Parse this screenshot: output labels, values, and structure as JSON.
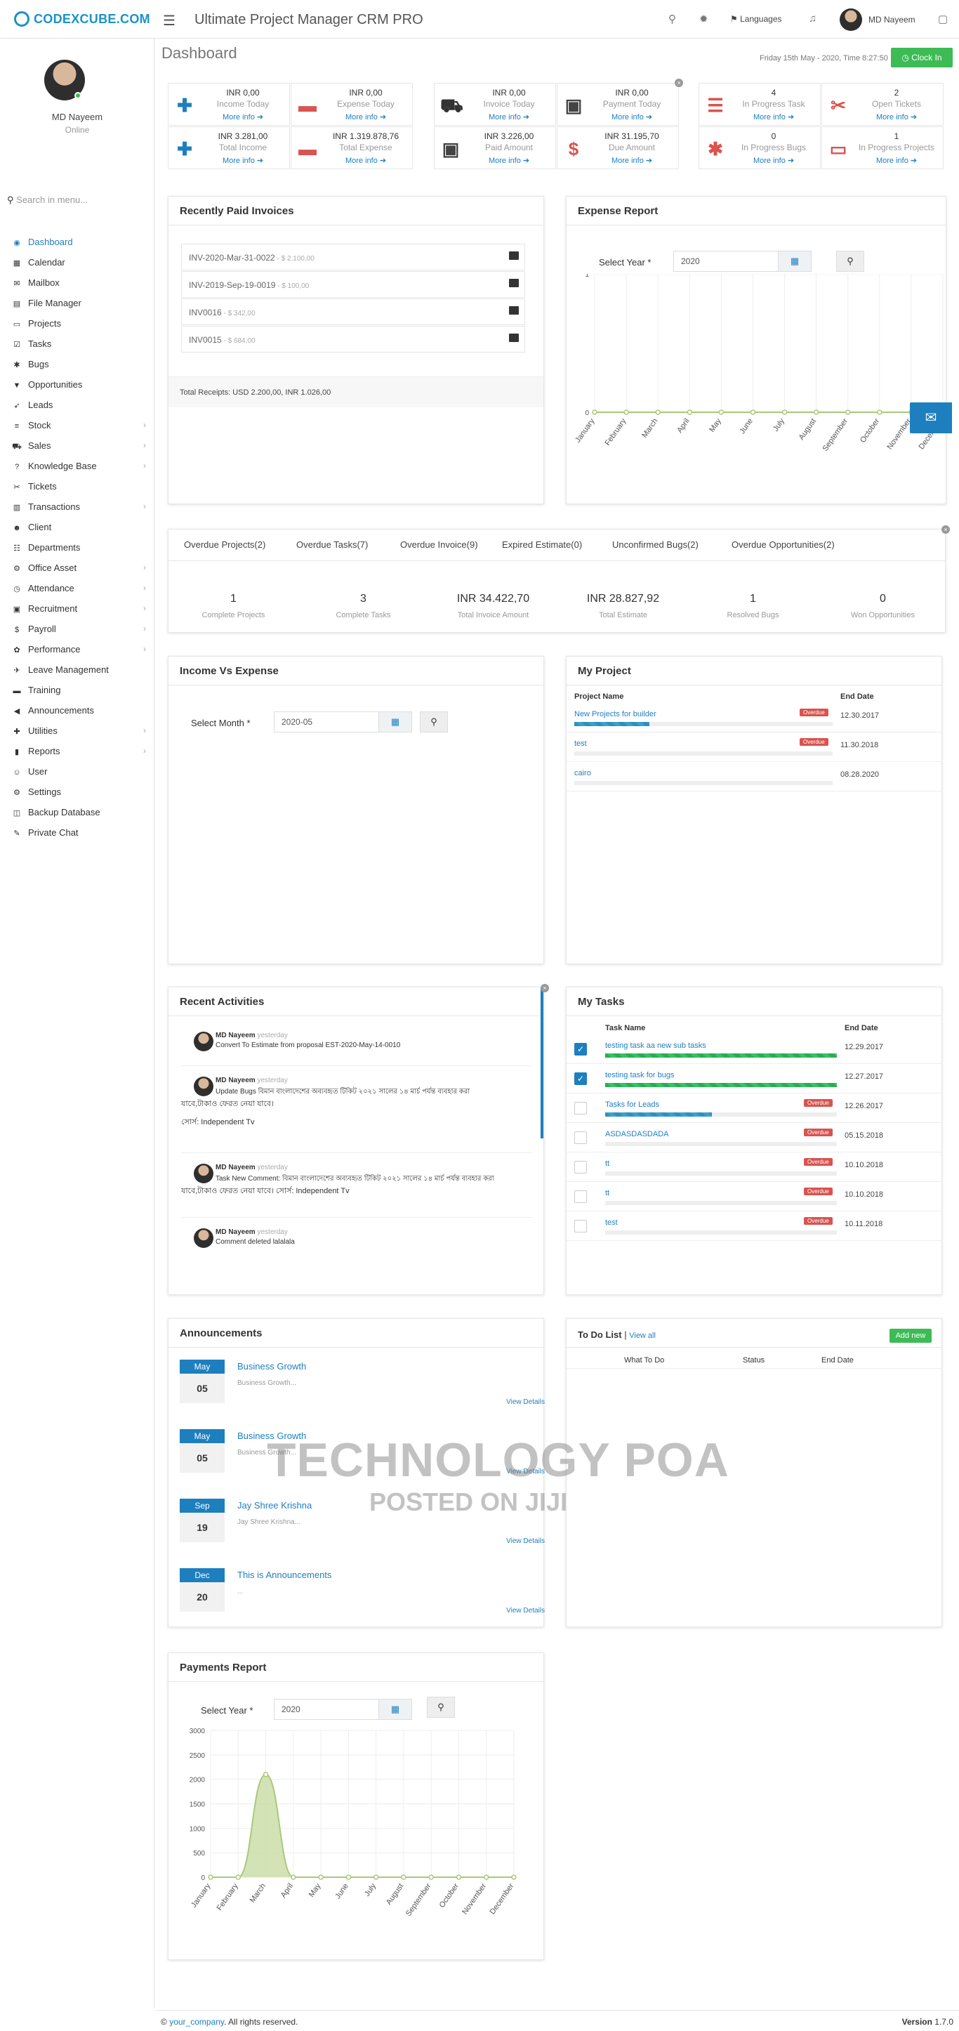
{
  "header": {
    "logo": "CODEXCUBE.COM",
    "app_title": "Ultimate Project Manager CRM PRO",
    "languages_label": "Languages",
    "user_name": "MD Nayeem"
  },
  "sidebar": {
    "user_name": "MD Nayeem",
    "status": "Online",
    "search_placeholder": "Search in menu...",
    "items": [
      {
        "label": "Dashboard",
        "icon": "dashboard-icon",
        "glyph": "◉",
        "arrow": false
      },
      {
        "label": "Calendar",
        "icon": "calendar-icon",
        "glyph": "▦",
        "arrow": false
      },
      {
        "label": "Mailbox",
        "icon": "envelope-icon",
        "glyph": "✉",
        "arrow": false
      },
      {
        "label": "File Manager",
        "icon": "file-icon",
        "glyph": "▤",
        "arrow": false
      },
      {
        "label": "Projects",
        "icon": "folder-icon",
        "glyph": "▭",
        "arrow": false
      },
      {
        "label": "Tasks",
        "icon": "tasks-icon",
        "glyph": "☑",
        "arrow": false
      },
      {
        "label": "Bugs",
        "icon": "bug-icon",
        "glyph": "✱",
        "arrow": false
      },
      {
        "label": "Opportunities",
        "icon": "filter-icon",
        "glyph": "▼",
        "arrow": false
      },
      {
        "label": "Leads",
        "icon": "rocket-icon",
        "glyph": "➶",
        "arrow": false
      },
      {
        "label": "Stock",
        "icon": "database-icon",
        "glyph": "≡",
        "arrow": true
      },
      {
        "label": "Sales",
        "icon": "cart-icon",
        "glyph": "⛟",
        "arrow": true
      },
      {
        "label": "Knowledge Base",
        "icon": "question-icon",
        "glyph": "?",
        "arrow": true
      },
      {
        "label": "Tickets",
        "icon": "ticket-icon",
        "glyph": "✂",
        "arrow": false
      },
      {
        "label": "Transactions",
        "icon": "transactions-icon",
        "glyph": "▥",
        "arrow": true
      },
      {
        "label": "Client",
        "icon": "users-icon",
        "glyph": "☻",
        "arrow": false
      },
      {
        "label": "Departments",
        "icon": "sitemap-icon",
        "glyph": "☷",
        "arrow": false
      },
      {
        "label": "Office Asset",
        "icon": "briefcase-icon",
        "glyph": "⚙",
        "arrow": true
      },
      {
        "label": "Attendance",
        "icon": "clock-icon",
        "glyph": "◷",
        "arrow": true
      },
      {
        "label": "Recruitment",
        "icon": "recruitment-icon",
        "glyph": "▣",
        "arrow": true
      },
      {
        "label": "Payroll",
        "icon": "dollar-icon",
        "glyph": "$",
        "arrow": true
      },
      {
        "label": "Performance",
        "icon": "performance-icon",
        "glyph": "✿",
        "arrow": true
      },
      {
        "label": "Leave Management",
        "icon": "plane-icon",
        "glyph": "✈",
        "arrow": false
      },
      {
        "label": "Training",
        "icon": "training-icon",
        "glyph": "▬",
        "arrow": false
      },
      {
        "label": "Announcements",
        "icon": "bullhorn-icon",
        "glyph": "◀",
        "arrow": false
      },
      {
        "label": "Utilities",
        "icon": "gift-icon",
        "glyph": "✚",
        "arrow": true
      },
      {
        "label": "Reports",
        "icon": "bar-chart-icon",
        "glyph": "▮",
        "arrow": true
      },
      {
        "label": "User",
        "icon": "user-icon",
        "glyph": "☺",
        "arrow": false
      },
      {
        "label": "Settings",
        "icon": "cogs-icon",
        "glyph": "⚙",
        "arrow": false
      },
      {
        "label": "Backup Database",
        "icon": "backup-icon",
        "glyph": "◫",
        "arrow": false
      },
      {
        "label": "Private Chat",
        "icon": "chat-icon",
        "glyph": "✎",
        "arrow": false
      }
    ]
  },
  "page": {
    "title": "Dashboard",
    "datetime": "Friday 15th May - 2020,  Time   8:27:50",
    "clock_in": "Clock In"
  },
  "stats": [
    {
      "value": "INR 0,00",
      "label": "Income Today",
      "more": "More info",
      "glyph": "✚",
      "icon": "plus-icon",
      "color": "#1e7fbf"
    },
    {
      "value": "INR 0,00",
      "label": "Expense Today",
      "more": "More info",
      "glyph": "▬",
      "icon": "minus-icon",
      "color": "#d9534f"
    },
    {
      "value": "INR 3.281,00",
      "label": "Total Income",
      "more": "More info",
      "glyph": "✚",
      "icon": "plus-icon",
      "color": "#1e7fbf"
    },
    {
      "value": "INR 1.319.878,76",
      "label": "Total Expense",
      "more": "More info",
      "glyph": "▬",
      "icon": "minus-icon",
      "color": "#d9534f"
    },
    {
      "value": "INR 0,00",
      "label": "Invoice Today",
      "more": "More info",
      "glyph": "⛟",
      "icon": "cart-icon",
      "color": "#333"
    },
    {
      "value": "INR 0,00",
      "label": "Payment Today",
      "more": "More info",
      "glyph": "▣",
      "icon": "money-icon",
      "color": "#444"
    },
    {
      "value": "INR 3.226,00",
      "label": "Paid Amount",
      "more": "More info",
      "glyph": "▣",
      "icon": "money-icon",
      "color": "#444"
    },
    {
      "value": "INR 31.195,70",
      "label": "Due Amount",
      "more": "More info",
      "glyph": "$",
      "icon": "dollar-icon",
      "color": "#d9534f"
    },
    {
      "value": "4",
      "label": "In Progress Task",
      "more": "More info",
      "glyph": "☰",
      "icon": "tasks-icon",
      "color": "#d9534f"
    },
    {
      "value": "2",
      "label": "Open Tickets",
      "more": "More info",
      "glyph": "✂",
      "icon": "ticket-icon",
      "color": "#d9534f"
    },
    {
      "value": "0",
      "label": "In Progress Bugs",
      "more": "More info",
      "glyph": "✱",
      "icon": "bug-icon",
      "color": "#d9534f"
    },
    {
      "value": "1",
      "label": "In Progress Projects",
      "more": "More info",
      "glyph": "▭",
      "icon": "folder-open-icon",
      "color": "#d9534f"
    }
  ],
  "recent_invoices": {
    "title": "Recently Paid Invoices",
    "rows": [
      {
        "ref": "INV-2020-Mar-31-0022",
        "amount": " - $ 2.100,00"
      },
      {
        "ref": "INV-2019-Sep-19-0019",
        "amount": " - $ 100,00"
      },
      {
        "ref": "INV0016",
        "amount": " - $ 342,00"
      },
      {
        "ref": "INV0015",
        "amount": " - $ 684,00"
      }
    ],
    "total_label": "Total Receipts:",
    "total_value": " USD 2.200,00, INR 1.026,00"
  },
  "expense_report": {
    "title": "Expense Report",
    "year_label": "Select Year *",
    "year_value": "2020"
  },
  "expense_chart": {
    "type": "line",
    "categories": [
      "January",
      "February",
      "March",
      "April",
      "May",
      "June",
      "July",
      "August",
      "September",
      "October",
      "November",
      "December"
    ],
    "values": [
      0,
      0,
      0,
      0,
      0,
      0,
      0,
      0,
      0,
      0,
      0,
      0
    ],
    "yticks": [
      "1",
      "0"
    ],
    "ylim": [
      0,
      1
    ],
    "color": "#a8c97a"
  },
  "overview_tabs": [
    "Overdue Projects(2)",
    "Overdue Tasks(7)",
    "Overdue Invoice(9)",
    "Expired Estimate(0)",
    "Unconfirmed Bugs(2)",
    "Overdue Opportunities(2)"
  ],
  "overview_stats": [
    {
      "value": "1",
      "label": "Complete Projects"
    },
    {
      "value": "3",
      "label": "Complete Tasks"
    },
    {
      "value": "INR 34.422,70",
      "label": "Total Invoice Amount"
    },
    {
      "value": "INR 28.827,92",
      "label": "Total Estimate"
    },
    {
      "value": "1",
      "label": "Resolved Bugs"
    },
    {
      "value": "0",
      "label": "Won Opportunities"
    }
  ],
  "income_expense": {
    "title": "Income Vs Expense",
    "month_label": "Select Month *",
    "month_value": "2020-05"
  },
  "my_project": {
    "title": "My Project",
    "col_name": "Project Name",
    "col_end": "End Date",
    "rows": [
      {
        "name": "New Projects for builder",
        "badge": "Overdue",
        "end": "12.30.2017",
        "progress": 0.29
      },
      {
        "name": "test",
        "badge": "Overdue",
        "end": "11.30.2018",
        "progress": 0.0
      },
      {
        "name": "cairo",
        "badge": "",
        "end": "08.28.2020",
        "progress": 0.0
      }
    ]
  },
  "recent_activities": {
    "title": "Recent Activities",
    "items": [
      {
        "name": "MD Nayeem",
        "when": "yesterday",
        "text": "Convert To Estimate from proposal EST-2020-May-14-0010",
        "extra": ""
      },
      {
        "name": "MD Nayeem",
        "when": "yesterday",
        "text": "Update Bugs বিমান বাংলাদেশের অব্যবহৃত টিকিট ২০২১ সালের ১৪ মার্চ পর্যন্ত ব্যবহার করা",
        "extra": "যাবে,টাকাও ফেরত নেয়া যাবে।"
      },
      {
        "name": "MD Nayeem",
        "when": "yesterday",
        "text": "Task New Comment: বিমান বাংলাদেশের অব্যবহৃত টিকিট ২০২১ সালের ১৪ মার্চ পর্যন্ত ব্যবহার করা",
        "extra": "যাবে,টাকাও ফেরত নেয়া যাবে। সোর্স: Independent Tv"
      },
      {
        "name": "MD Nayeem",
        "when": "yesterday",
        "text": "Comment deleted lalalala",
        "extra": ""
      }
    ],
    "source_line": "সোর্স: Independent Tv"
  },
  "my_tasks": {
    "title": "My Tasks",
    "col_name": "Task Name",
    "col_end": "End Date",
    "rows": [
      {
        "name": "testing task aa new sub tasks",
        "badge": "",
        "end": "12.29.2017",
        "checked": true,
        "progress": 1.0
      },
      {
        "name": "testing task for bugs",
        "badge": "",
        "end": "12.27.2017",
        "checked": true,
        "progress": 1.0
      },
      {
        "name": "Tasks for Leads",
        "badge": "Overdue",
        "end": "12.26.2017",
        "checked": false,
        "progress": 0.46
      },
      {
        "name": "ASDASDASDADA",
        "badge": "Overdue",
        "end": "05.15.2018",
        "checked": false,
        "progress": 0.0
      },
      {
        "name": "tt",
        "badge": "Overdue",
        "end": "10.10.2018",
        "checked": false,
        "progress": 0.0
      },
      {
        "name": "tt",
        "badge": "Overdue",
        "end": "10.10.2018",
        "checked": false,
        "progress": 0.0
      },
      {
        "name": "test",
        "badge": "Overdue",
        "end": "10.11.2018",
        "checked": false,
        "progress": 0.0
      }
    ]
  },
  "announcements": {
    "title": "Announcements",
    "items": [
      {
        "month": "May",
        "day": "05",
        "title": "Business Growth",
        "desc": "Business Growth...",
        "view": "View Details"
      },
      {
        "month": "May",
        "day": "05",
        "title": "Business Growth",
        "desc": "Business Growth...",
        "view": "View Details"
      },
      {
        "month": "Sep",
        "day": "19",
        "title": "Jay Shree Krishna",
        "desc": "Jay Shree Krishna...",
        "view": "View Details"
      },
      {
        "month": "Dec",
        "day": "20",
        "title": "This is Announcements",
        "desc": "...",
        "view": "View Details"
      }
    ]
  },
  "todo": {
    "title": "To Do List",
    "view_all": "View all",
    "add_new": "Add new",
    "col_what": "What To Do",
    "col_status": "Status",
    "col_end": "End Date"
  },
  "payments_report": {
    "title": "Payments Report",
    "year_label": "Select Year *",
    "year_value": "2020"
  },
  "payments_chart": {
    "type": "area",
    "categories": [
      "January",
      "February",
      "March",
      "April",
      "May",
      "June",
      "July",
      "August",
      "September",
      "October",
      "November",
      "December"
    ],
    "values": [
      0,
      0,
      2100,
      0,
      0,
      0,
      0,
      0,
      0,
      0,
      0,
      0
    ],
    "yticks": [
      0,
      500,
      1000,
      1500,
      2000,
      2500,
      3000
    ],
    "ylim": [
      0,
      3000
    ],
    "color": "#a8c97a"
  },
  "watermark": {
    "line1": "TECHNOLOGY POA",
    "line2": "POSTED ON JIJI"
  },
  "footer": {
    "copy": "© ",
    "company": "your_company",
    "rights": ". All rights reserved.",
    "version_label": "Version ",
    "version": "1.7.0"
  }
}
